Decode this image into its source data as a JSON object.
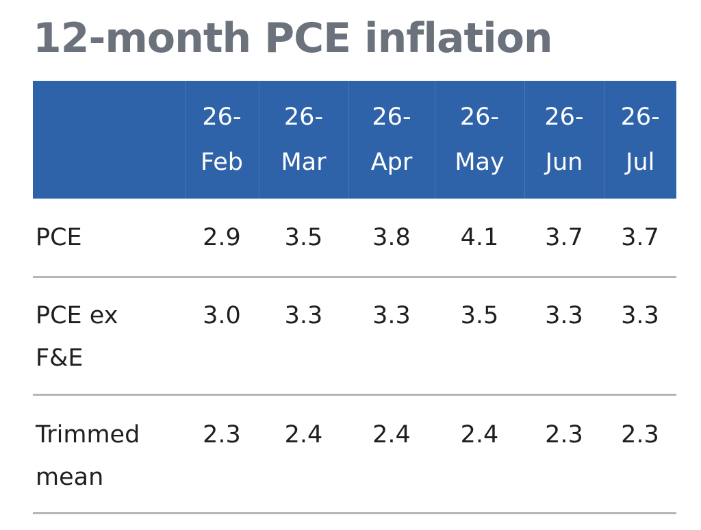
{
  "title": "12-month PCE inflation",
  "table": {
    "columns": [
      {
        "top": "26-",
        "bottom": "Feb"
      },
      {
        "top": "26-",
        "bottom": "Mar"
      },
      {
        "top": "26-",
        "bottom": "Apr"
      },
      {
        "top": "26-",
        "bottom": "May"
      },
      {
        "top": "26-",
        "bottom": "Jun"
      },
      {
        "top": "26-",
        "bottom": "Jul"
      }
    ],
    "rows": [
      {
        "label_line1": "PCE",
        "label_line2": "",
        "values": [
          "2.9",
          "3.5",
          "3.8",
          "4.1",
          "3.7",
          "3.7"
        ]
      },
      {
        "label_line1": "PCE ex",
        "label_line2": "F&E",
        "values": [
          "3.0",
          "3.3",
          "3.3",
          "3.5",
          "3.3",
          "3.3"
        ]
      },
      {
        "label_line1": "Trimmed",
        "label_line2": "mean",
        "values": [
          "2.3",
          "2.4",
          "2.4",
          "2.4",
          "2.3",
          "2.3"
        ]
      }
    ]
  },
  "colors": {
    "title": "#6b727c",
    "header_bg": "#2f63a9",
    "header_text": "#ffffff",
    "row_rule": "#b6b6b6",
    "body_text": "#1f1f1f"
  }
}
